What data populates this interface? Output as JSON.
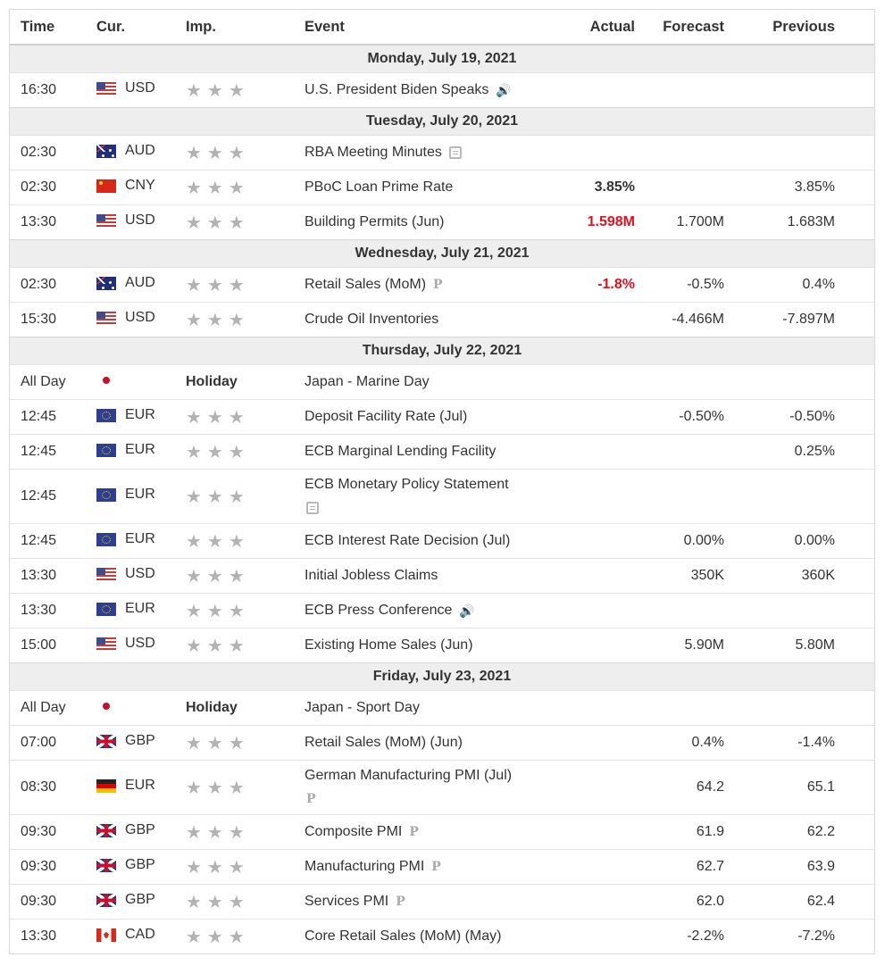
{
  "headers": {
    "time": "Time",
    "cur": "Cur.",
    "imp": "Imp.",
    "event": "Event",
    "actual": "Actual",
    "forecast": "Forecast",
    "previous": "Previous"
  },
  "stars_glyph": "★★★",
  "days": [
    {
      "label": "Monday, July 19, 2021",
      "events": [
        {
          "time": "16:30",
          "flag": "us",
          "cur": "USD",
          "imp": "stars",
          "event": "U.S. President Biden Speaks",
          "icon": "speaker-icon",
          "actual": "",
          "actual_style": "",
          "forecast": "",
          "previous": ""
        }
      ]
    },
    {
      "label": "Tuesday, July 20, 2021",
      "events": [
        {
          "time": "02:30",
          "flag": "au",
          "cur": "AUD",
          "imp": "stars",
          "event": "RBA Meeting Minutes",
          "icon": "report-icon",
          "actual": "",
          "actual_style": "",
          "forecast": "",
          "previous": ""
        },
        {
          "time": "02:30",
          "flag": "cn",
          "cur": "CNY",
          "imp": "stars",
          "event": "PBoC Loan Prime Rate",
          "icon": "",
          "actual": "3.85%",
          "actual_style": "bold",
          "forecast": "",
          "previous": "3.85%"
        },
        {
          "time": "13:30",
          "flag": "us",
          "cur": "USD",
          "imp": "stars",
          "event": "Building Permits (Jun)",
          "icon": "",
          "actual": "1.598M",
          "actual_style": "red",
          "forecast": "1.700M",
          "previous": "1.683M"
        }
      ]
    },
    {
      "label": "Wednesday, July 21, 2021",
      "events": [
        {
          "time": "02:30",
          "flag": "au",
          "cur": "AUD",
          "imp": "stars",
          "event": "Retail Sales (MoM)",
          "icon": "prelim-icon",
          "actual": "-1.8%",
          "actual_style": "red",
          "forecast": "-0.5%",
          "previous": "0.4%"
        },
        {
          "time": "15:30",
          "flag": "us",
          "cur": "USD",
          "imp": "stars",
          "event": "Crude Oil Inventories",
          "icon": "",
          "actual": "",
          "actual_style": "",
          "forecast": "-4.466M",
          "previous": "-7.897M"
        }
      ]
    },
    {
      "label": "Thursday, July 22, 2021",
      "events": [
        {
          "time": "All Day",
          "flag": "jp",
          "cur": "",
          "imp": "holiday",
          "imp_text": "Holiday",
          "event": "Japan - Marine Day",
          "icon": "",
          "actual": "",
          "actual_style": "",
          "forecast": "",
          "previous": ""
        },
        {
          "time": "12:45",
          "flag": "eu",
          "cur": "EUR",
          "imp": "stars",
          "event": "Deposit Facility Rate (Jul)",
          "icon": "",
          "actual": "",
          "actual_style": "",
          "forecast": "-0.50%",
          "previous": "-0.50%"
        },
        {
          "time": "12:45",
          "flag": "eu",
          "cur": "EUR",
          "imp": "stars",
          "event": "ECB Marginal Lending Facility",
          "icon": "",
          "actual": "",
          "actual_style": "",
          "forecast": "",
          "previous": "0.25%"
        },
        {
          "time": "12:45",
          "flag": "eu",
          "cur": "EUR",
          "imp": "stars",
          "event": "ECB Monetary Policy Statement",
          "icon": "report-icon",
          "tall": true,
          "actual": "",
          "actual_style": "",
          "forecast": "",
          "previous": ""
        },
        {
          "time": "12:45",
          "flag": "eu",
          "cur": "EUR",
          "imp": "stars",
          "event": "ECB Interest Rate Decision (Jul)",
          "icon": "",
          "actual": "",
          "actual_style": "",
          "forecast": "0.00%",
          "previous": "0.00%"
        },
        {
          "time": "13:30",
          "flag": "us",
          "cur": "USD",
          "imp": "stars",
          "event": "Initial Jobless Claims",
          "icon": "",
          "actual": "",
          "actual_style": "",
          "forecast": "350K",
          "previous": "360K"
        },
        {
          "time": "13:30",
          "flag": "eu",
          "cur": "EUR",
          "imp": "stars",
          "event": "ECB Press Conference",
          "icon": "speaker-icon",
          "actual": "",
          "actual_style": "",
          "forecast": "",
          "previous": ""
        },
        {
          "time": "15:00",
          "flag": "us",
          "cur": "USD",
          "imp": "stars",
          "event": "Existing Home Sales (Jun)",
          "icon": "",
          "actual": "",
          "actual_style": "",
          "forecast": "5.90M",
          "previous": "5.80M"
        }
      ]
    },
    {
      "label": "Friday, July 23, 2021",
      "events": [
        {
          "time": "All Day",
          "flag": "jp",
          "cur": "",
          "imp": "holiday",
          "imp_text": "Holiday",
          "event": "Japan - Sport Day",
          "icon": "",
          "actual": "",
          "actual_style": "",
          "forecast": "",
          "previous": ""
        },
        {
          "time": "07:00",
          "flag": "gb",
          "cur": "GBP",
          "imp": "stars",
          "event": "Retail Sales (MoM) (Jun)",
          "icon": "",
          "actual": "",
          "actual_style": "",
          "forecast": "0.4%",
          "previous": "-1.4%"
        },
        {
          "time": "08:30",
          "flag": "de",
          "cur": "EUR",
          "imp": "stars",
          "event": "German Manufacturing PMI (Jul)",
          "icon": "prelim-icon",
          "tall": true,
          "actual": "",
          "actual_style": "",
          "forecast": "64.2",
          "previous": "65.1"
        },
        {
          "time": "09:30",
          "flag": "gb",
          "cur": "GBP",
          "imp": "stars",
          "event": "Composite PMI",
          "icon": "prelim-icon",
          "actual": "",
          "actual_style": "",
          "forecast": "61.9",
          "previous": "62.2"
        },
        {
          "time": "09:30",
          "flag": "gb",
          "cur": "GBP",
          "imp": "stars",
          "event": "Manufacturing PMI",
          "icon": "prelim-icon",
          "actual": "",
          "actual_style": "",
          "forecast": "62.7",
          "previous": "63.9"
        },
        {
          "time": "09:30",
          "flag": "gb",
          "cur": "GBP",
          "imp": "stars",
          "event": "Services PMI",
          "icon": "prelim-icon",
          "actual": "",
          "actual_style": "",
          "forecast": "62.0",
          "previous": "62.4"
        },
        {
          "time": "13:30",
          "flag": "ca",
          "cur": "CAD",
          "imp": "stars",
          "event": "Core Retail Sales (MoM) (May)",
          "icon": "",
          "actual": "",
          "actual_style": "",
          "forecast": "-2.2%",
          "previous": "-7.2%"
        }
      ]
    }
  ],
  "icon_glyphs": {
    "speaker-icon": "🔊",
    "prelim-icon": "P"
  },
  "colors": {
    "actual_worse": "#e0121e",
    "day_header_bg": "#eeeeee",
    "stars": "#b3b3b3"
  }
}
